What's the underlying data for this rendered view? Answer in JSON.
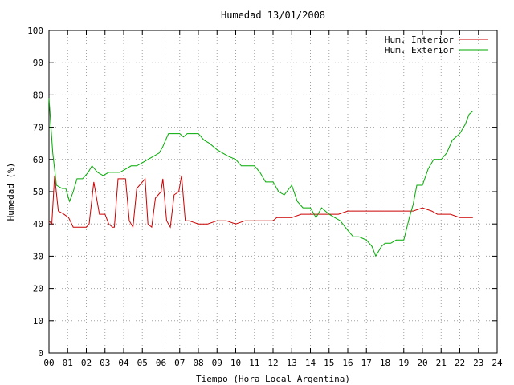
{
  "chart_data": {
    "type": "line",
    "title": "Humedad 13/01/2008",
    "xlabel": "Tiempo (Hora Local Argentina)",
    "ylabel": "Humedad (%)",
    "xlim": [
      0,
      24
    ],
    "ylim": [
      0,
      100
    ],
    "x_ticks": [
      "00",
      "01",
      "02",
      "03",
      "04",
      "05",
      "06",
      "07",
      "08",
      "09",
      "10",
      "11",
      "12",
      "13",
      "14",
      "15",
      "16",
      "17",
      "18",
      "19",
      "20",
      "21",
      "22",
      "23",
      "24"
    ],
    "y_ticks": [
      0,
      10,
      20,
      30,
      40,
      50,
      60,
      70,
      80,
      90,
      100
    ],
    "grid": true,
    "legend_position": "top-right",
    "series": [
      {
        "name": "Hum. Interior",
        "color": "#cc0000",
        "points": [
          [
            0.0,
            41
          ],
          [
            0.15,
            40
          ],
          [
            0.3,
            55
          ],
          [
            0.5,
            44
          ],
          [
            0.8,
            43
          ],
          [
            1.05,
            42
          ],
          [
            1.3,
            39
          ],
          [
            1.6,
            39
          ],
          [
            2.0,
            39
          ],
          [
            2.15,
            40
          ],
          [
            2.4,
            53
          ],
          [
            2.7,
            43
          ],
          [
            3.0,
            43
          ],
          [
            3.2,
            40
          ],
          [
            3.4,
            39
          ],
          [
            3.5,
            39
          ],
          [
            3.7,
            54
          ],
          [
            4.0,
            54
          ],
          [
            4.1,
            54
          ],
          [
            4.3,
            41
          ],
          [
            4.5,
            39
          ],
          [
            4.7,
            51
          ],
          [
            5.0,
            53
          ],
          [
            5.15,
            54
          ],
          [
            5.3,
            40
          ],
          [
            5.5,
            39
          ],
          [
            5.7,
            48
          ],
          [
            6.0,
            50
          ],
          [
            6.1,
            54
          ],
          [
            6.3,
            41
          ],
          [
            6.5,
            39
          ],
          [
            6.7,
            49
          ],
          [
            6.95,
            50
          ],
          [
            7.1,
            55
          ],
          [
            7.3,
            41
          ],
          [
            7.5,
            41
          ],
          [
            8.0,
            40
          ],
          [
            8.5,
            40
          ],
          [
            9.0,
            41
          ],
          [
            9.5,
            41
          ],
          [
            10.0,
            40
          ],
          [
            10.5,
            41
          ],
          [
            11.0,
            41
          ],
          [
            11.5,
            41
          ],
          [
            12.0,
            41
          ],
          [
            12.2,
            42
          ],
          [
            12.5,
            42
          ],
          [
            13.0,
            42
          ],
          [
            13.5,
            43
          ],
          [
            14.0,
            43
          ],
          [
            14.5,
            43
          ],
          [
            15.0,
            43
          ],
          [
            15.5,
            43
          ],
          [
            16.0,
            44
          ],
          [
            16.5,
            44
          ],
          [
            17.0,
            44
          ],
          [
            17.5,
            44
          ],
          [
            18.0,
            44
          ],
          [
            18.5,
            44
          ],
          [
            19.0,
            44
          ],
          [
            19.5,
            44
          ],
          [
            20.0,
            45
          ],
          [
            20.5,
            44
          ],
          [
            20.8,
            43
          ],
          [
            21.0,
            43
          ],
          [
            21.5,
            43
          ],
          [
            22.0,
            42
          ],
          [
            22.5,
            42
          ],
          [
            22.7,
            42
          ]
        ]
      },
      {
        "name": "Hum. Exterior",
        "color": "#00aa00",
        "points": [
          [
            0.0,
            79
          ],
          [
            0.2,
            62
          ],
          [
            0.4,
            52
          ],
          [
            0.7,
            51
          ],
          [
            0.9,
            51
          ],
          [
            1.1,
            47
          ],
          [
            1.3,
            50
          ],
          [
            1.5,
            54
          ],
          [
            1.8,
            54
          ],
          [
            2.1,
            56
          ],
          [
            2.3,
            58
          ],
          [
            2.6,
            56
          ],
          [
            2.9,
            55
          ],
          [
            3.2,
            56
          ],
          [
            3.5,
            56
          ],
          [
            3.8,
            56
          ],
          [
            4.1,
            57
          ],
          [
            4.4,
            58
          ],
          [
            4.7,
            58
          ],
          [
            5.0,
            59
          ],
          [
            5.3,
            60
          ],
          [
            5.6,
            61
          ],
          [
            5.9,
            62
          ],
          [
            6.1,
            64
          ],
          [
            6.4,
            68
          ],
          [
            6.7,
            68
          ],
          [
            7.0,
            68
          ],
          [
            7.2,
            67
          ],
          [
            7.4,
            68
          ],
          [
            7.7,
            68
          ],
          [
            8.0,
            68
          ],
          [
            8.3,
            66
          ],
          [
            8.6,
            65
          ],
          [
            9.0,
            63
          ],
          [
            9.3,
            62
          ],
          [
            9.6,
            61
          ],
          [
            10.0,
            60
          ],
          [
            10.3,
            58
          ],
          [
            10.6,
            58
          ],
          [
            11.0,
            58
          ],
          [
            11.3,
            56
          ],
          [
            11.6,
            53
          ],
          [
            12.0,
            53
          ],
          [
            12.3,
            50
          ],
          [
            12.6,
            49
          ],
          [
            13.0,
            52
          ],
          [
            13.3,
            47
          ],
          [
            13.6,
            45
          ],
          [
            14.0,
            45
          ],
          [
            14.3,
            42
          ],
          [
            14.6,
            45
          ],
          [
            15.0,
            43
          ],
          [
            15.3,
            42
          ],
          [
            15.6,
            41
          ],
          [
            16.0,
            38
          ],
          [
            16.3,
            36
          ],
          [
            16.6,
            36
          ],
          [
            17.0,
            35
          ],
          [
            17.3,
            33
          ],
          [
            17.5,
            30
          ],
          [
            17.8,
            33
          ],
          [
            18.0,
            34
          ],
          [
            18.3,
            34
          ],
          [
            18.6,
            35
          ],
          [
            19.0,
            35
          ],
          [
            19.3,
            42
          ],
          [
            19.5,
            46
          ],
          [
            19.7,
            52
          ],
          [
            20.0,
            52
          ],
          [
            20.3,
            57
          ],
          [
            20.6,
            60
          ],
          [
            21.0,
            60
          ],
          [
            21.3,
            62
          ],
          [
            21.6,
            66
          ],
          [
            22.0,
            68
          ],
          [
            22.3,
            71
          ],
          [
            22.5,
            74
          ],
          [
            22.7,
            75
          ]
        ]
      }
    ]
  }
}
